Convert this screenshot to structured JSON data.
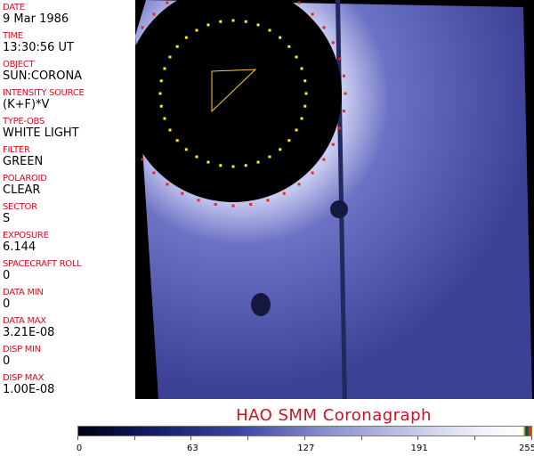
{
  "fields": [
    {
      "label": "DATE",
      "value": "9 Mar 1986"
    },
    {
      "label": "TIME",
      "value": "13:30:56 UT"
    },
    {
      "label": "OBJECT",
      "value": "SUN:CORONA"
    },
    {
      "label": "INTENSITY SOURCE",
      "value": "(K+F)*V"
    },
    {
      "label": "TYPE-OBS",
      "value": "WHITE LIGHT"
    },
    {
      "label": "FILTER",
      "value": "GREEN"
    },
    {
      "label": "POLAROID",
      "value": "CLEAR"
    },
    {
      "label": "SECTOR",
      "value": "S"
    },
    {
      "label": "EXPOSURE",
      "value": "6.144"
    },
    {
      "label": "SPACECRAFT ROLL",
      "value": "0"
    },
    {
      "label": "DATA MIN",
      "value": "0"
    },
    {
      "label": "DATA MAX",
      "value": "3.21E-08"
    },
    {
      "label": "DISP MIN",
      "value": "0"
    },
    {
      "label": "DISP MAX",
      "value": "1.00E-08"
    }
  ],
  "title": "HAO   SMM Coronagraph",
  "colorbar": {
    "ticks": [
      "0",
      "63",
      "127",
      "191",
      "255"
    ],
    "min": 0,
    "max": 255
  },
  "colors": {
    "label": "#cc1122",
    "image": "#4a4fa8",
    "occulter": "#000000",
    "inner_ring": "#ffee22",
    "outer_ring": "#ee2222"
  }
}
